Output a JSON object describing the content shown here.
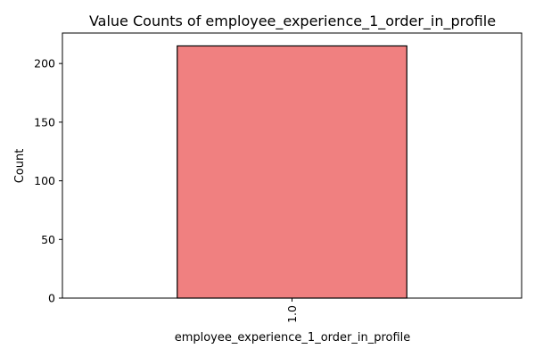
{
  "chart_data": {
    "type": "bar",
    "title": "Value Counts of employee_experience_1_order_in_profile",
    "xlabel": "employee_experience_1_order_in_profile",
    "ylabel": "Count",
    "categories": [
      "1.0"
    ],
    "values": [
      215
    ],
    "ylim": [
      0,
      226
    ],
    "yticks": [
      0,
      50,
      100,
      150,
      200
    ],
    "grid": false,
    "bar_color": "#f08080",
    "bar_edge_color": "#000000"
  }
}
